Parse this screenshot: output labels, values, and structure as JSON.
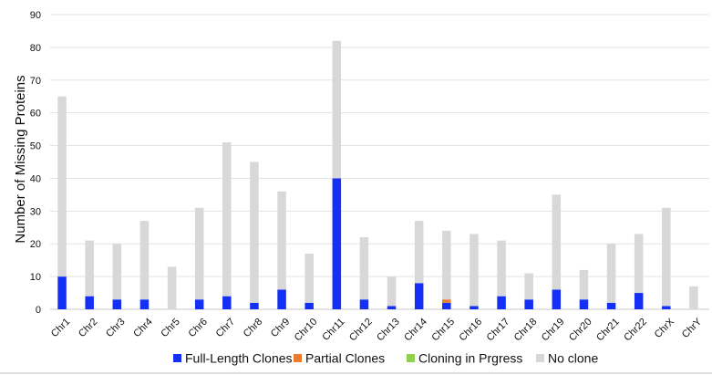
{
  "chart_data": {
    "type": "bar",
    "stacked": true,
    "title": "",
    "xlabel": "",
    "ylabel": "Number of Missing Proteins",
    "ylim": [
      0,
      90
    ],
    "yticks": [
      0,
      10,
      20,
      30,
      40,
      50,
      60,
      70,
      80,
      90
    ],
    "grid": true,
    "legend_position": "bottom",
    "categories": [
      "Chr1",
      "Chr2",
      "Chr3",
      "Chr4",
      "Chr5",
      "Chr6",
      "Chr7",
      "Chr8",
      "Chr9",
      "Chr10",
      "Chr11",
      "Chr12",
      "Chr13",
      "Chr14",
      "Chr15",
      "Chr16",
      "Chr17",
      "Chr18",
      "Chr19",
      "Chr20",
      "Chr21",
      "Chr22",
      "ChrX",
      "ChrY"
    ],
    "series": [
      {
        "name": "Full-Length Clones",
        "color": "#1430f5",
        "values": [
          10,
          4,
          3,
          3,
          0,
          3,
          4,
          2,
          6,
          2,
          40,
          3,
          1,
          8,
          2,
          1,
          4,
          3,
          6,
          3,
          2,
          5,
          1,
          0
        ]
      },
      {
        "name": "Partial Clones",
        "color": "#ee7b2c",
        "values": [
          0,
          0,
          0,
          0,
          0,
          0,
          0,
          0,
          0,
          0,
          0,
          0,
          0,
          0,
          1,
          0,
          0,
          0,
          0,
          0,
          0,
          0,
          0,
          0
        ]
      },
      {
        "name": "Cloning in Prgress",
        "color": "#8fd14f",
        "values": [
          0,
          0,
          0,
          0,
          0,
          0,
          0,
          0,
          0,
          0,
          0,
          0,
          0,
          0,
          0,
          0,
          0,
          0,
          0,
          0,
          0,
          0,
          0,
          0
        ]
      },
      {
        "name": "No clone",
        "color": "#d8d8d8",
        "values": [
          55,
          17,
          17,
          24,
          13,
          28,
          47,
          43,
          30,
          15,
          42,
          19,
          9,
          19,
          21,
          22,
          17,
          8,
          29,
          9,
          18,
          18,
          30,
          7
        ]
      }
    ]
  }
}
